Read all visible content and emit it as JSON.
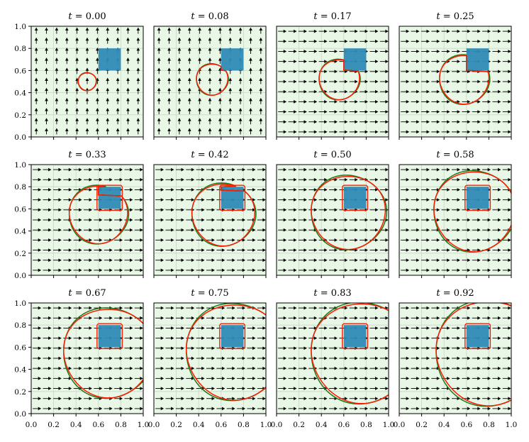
{
  "chart_data": {
    "type": "panel-grid",
    "rows": 3,
    "cols": 4,
    "panel_title_prefix": "t = ",
    "panels": [
      {
        "title": "0.00",
        "field": "vertical",
        "circle": {
          "cx": 0.5,
          "cy": 0.5,
          "r": 0.08
        }
      },
      {
        "title": "0.08",
        "field": "vertical",
        "circle": {
          "cx": 0.52,
          "cy": 0.52,
          "r": 0.14
        }
      },
      {
        "title": "0.17",
        "field": "horizontal",
        "circle": {
          "cx": 0.56,
          "cy": 0.52,
          "r": 0.18
        }
      },
      {
        "title": "0.25",
        "field": "horizontal",
        "circle": {
          "cx": 0.58,
          "cy": 0.52,
          "r": 0.22
        }
      },
      {
        "title": "0.33",
        "field": "horizontal",
        "circle": {
          "cx": 0.6,
          "cy": 0.55,
          "r": 0.26
        }
      },
      {
        "title": "0.42",
        "field": "horizontal",
        "circle": {
          "cx": 0.62,
          "cy": 0.55,
          "r": 0.28
        }
      },
      {
        "title": "0.50",
        "field": "horizontal",
        "circle": {
          "cx": 0.64,
          "cy": 0.57,
          "r": 0.33
        }
      },
      {
        "title": "0.58",
        "field": "horizontal",
        "circle": {
          "cx": 0.67,
          "cy": 0.58,
          "r": 0.36
        }
      },
      {
        "title": "0.67",
        "field": "horizontal",
        "circle": {
          "cx": 0.69,
          "cy": 0.55,
          "r": 0.4
        }
      },
      {
        "title": "0.75",
        "field": "horizontal",
        "circle": {
          "cx": 0.72,
          "cy": 0.56,
          "r": 0.43
        }
      },
      {
        "title": "0.83",
        "field": "horizontal",
        "circle": {
          "cx": 0.76,
          "cy": 0.55,
          "r": 0.45
        }
      },
      {
        "title": "0.92",
        "field": "horizontal",
        "circle": {
          "cx": 0.8,
          "cy": 0.55,
          "r": 0.47
        }
      }
    ],
    "obstacle": {
      "x": [
        0.6,
        0.8
      ],
      "y": [
        0.6,
        0.8
      ]
    },
    "xlim": [
      0,
      1
    ],
    "ylim": [
      0,
      1
    ],
    "x_ticks": [
      "0.0",
      "0.2",
      "0.4",
      "0.6",
      "0.8",
      "1.0"
    ],
    "y_ticks": [
      "0.0",
      "0.2",
      "0.4",
      "0.6",
      "0.8",
      "1.0"
    ],
    "grid": true,
    "colors": {
      "background": "#e9f7e6",
      "grid": "#c9d8c6",
      "obstacle": "#2f8bb7",
      "contour_red": "#ff1a00",
      "contour_green": "#1a7a1a",
      "arrows": "#000000"
    }
  }
}
